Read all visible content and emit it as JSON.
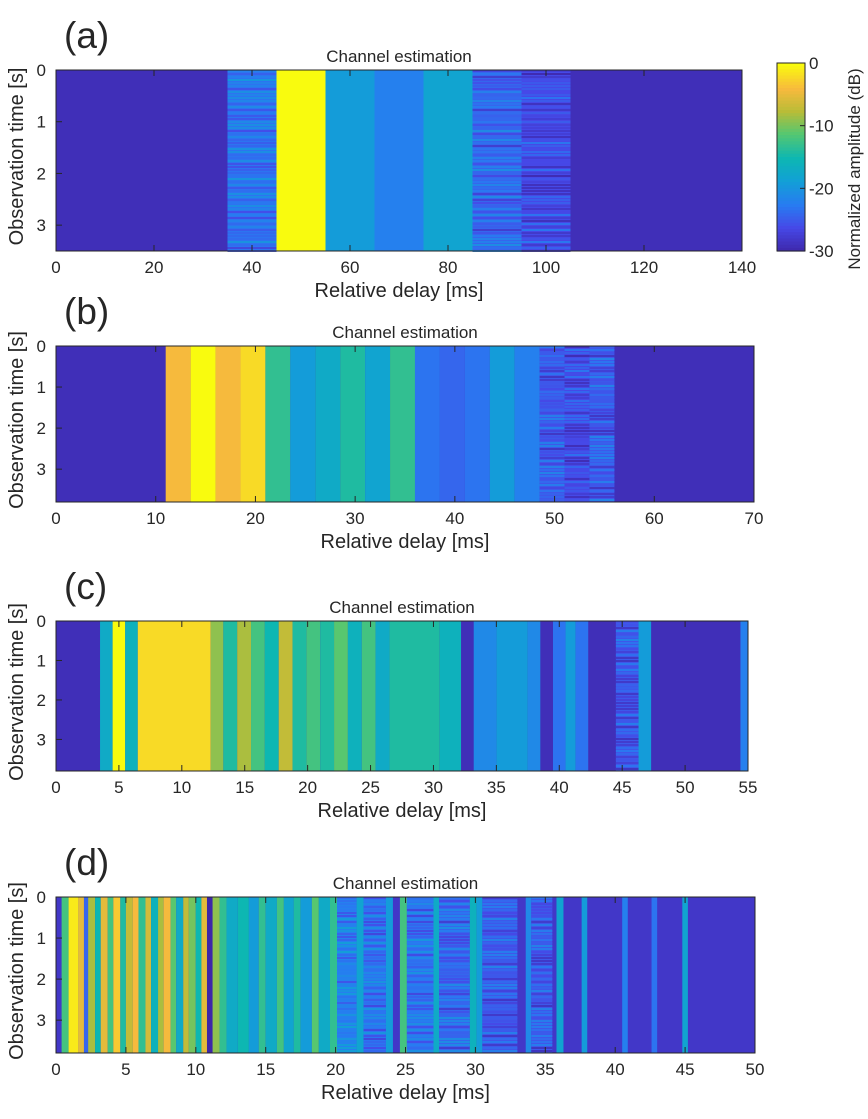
{
  "colorbar": {
    "label": "Normalized amplitude (dB)",
    "min": -30,
    "max": 0,
    "ticks": [
      0,
      -10,
      -20,
      -30
    ],
    "colormap": "parula"
  },
  "chart_data": [
    {
      "type": "heatmap",
      "panel_label": "(a)",
      "title": "Channel estimation",
      "xlabel": "Relative delay [ms]",
      "ylabel": "Observation time [s]",
      "xlim": [
        0,
        140
      ],
      "ylim": [
        0,
        3.5
      ],
      "xticks": [
        0,
        20,
        40,
        60,
        80,
        100,
        120,
        140
      ],
      "yticks": [
        0,
        1,
        2,
        3
      ],
      "background_db": -29,
      "segments": [
        {
          "x0": 35,
          "x1": 45,
          "db": -23,
          "streaky": true
        },
        {
          "x0": 45,
          "x1": 55,
          "db": 0
        },
        {
          "x0": 55,
          "x1": 65,
          "db": -19
        },
        {
          "x0": 65,
          "x1": 75,
          "db": -22
        },
        {
          "x0": 75,
          "x1": 85,
          "db": -18
        },
        {
          "x0": 85,
          "x1": 95,
          "db": -24,
          "streaky": true
        },
        {
          "x0": 95,
          "x1": 105,
          "db": -26,
          "streaky": true
        }
      ]
    },
    {
      "type": "heatmap",
      "panel_label": "(b)",
      "title": "Channel estimation",
      "xlabel": "Relative delay [ms]",
      "ylabel": "Observation time [s]",
      "xlim": [
        0,
        70
      ],
      "ylim": [
        0,
        3.8
      ],
      "xticks": [
        0,
        10,
        20,
        30,
        40,
        50,
        60,
        70
      ],
      "yticks": [
        0,
        1,
        2,
        3
      ],
      "background_db": -29,
      "segments": [
        {
          "x0": 11,
          "x1": 13.5,
          "db": -4
        },
        {
          "x0": 13.5,
          "x1": 16,
          "db": 0
        },
        {
          "x0": 16,
          "x1": 18.5,
          "db": -4
        },
        {
          "x0": 18.5,
          "x1": 21,
          "db": -2
        },
        {
          "x0": 21,
          "x1": 23.5,
          "db": -13
        },
        {
          "x0": 23.5,
          "x1": 26,
          "db": -19
        },
        {
          "x0": 26,
          "x1": 28.5,
          "db": -17
        },
        {
          "x0": 28.5,
          "x1": 31,
          "db": -14
        },
        {
          "x0": 31,
          "x1": 33.5,
          "db": -18
        },
        {
          "x0": 33.5,
          "x1": 36,
          "db": -13
        },
        {
          "x0": 36,
          "x1": 38.5,
          "db": -23
        },
        {
          "x0": 38.5,
          "x1": 41,
          "db": -24
        },
        {
          "x0": 41,
          "x1": 43.5,
          "db": -23
        },
        {
          "x0": 43.5,
          "x1": 46,
          "db": -19
        },
        {
          "x0": 46,
          "x1": 48.5,
          "db": -22
        },
        {
          "x0": 48.5,
          "x1": 51,
          "db": -25,
          "streaky": true
        },
        {
          "x0": 51,
          "x1": 53.5,
          "db": -26,
          "streaky": true
        },
        {
          "x0": 53.5,
          "x1": 56,
          "db": -25,
          "streaky": true
        }
      ]
    },
    {
      "type": "heatmap",
      "panel_label": "(c)",
      "title": "Channel estimation",
      "xlabel": "Relative delay [ms]",
      "ylabel": "Observation time [s]",
      "xlim": [
        0,
        55
      ],
      "ylim": [
        0,
        3.8
      ],
      "xticks": [
        0,
        5,
        10,
        15,
        20,
        25,
        30,
        35,
        40,
        45,
        50,
        55
      ],
      "yticks": [
        0,
        1,
        2,
        3
      ],
      "background_db": -29,
      "segments": [
        {
          "x0": 3.5,
          "x1": 4.5,
          "db": -17
        },
        {
          "x0": 4.5,
          "x1": 5.5,
          "db": 0
        },
        {
          "x0": 5.5,
          "x1": 6.5,
          "db": -16
        },
        {
          "x0": 6.5,
          "x1": 12.3,
          "db": -2
        },
        {
          "x0": 12.3,
          "x1": 13.3,
          "db": -9
        },
        {
          "x0": 13.3,
          "x1": 14.4,
          "db": -14
        },
        {
          "x0": 14.4,
          "x1": 15.5,
          "db": -8
        },
        {
          "x0": 15.5,
          "x1": 16.6,
          "db": -12
        },
        {
          "x0": 16.6,
          "x1": 17.7,
          "db": -15
        },
        {
          "x0": 17.7,
          "x1": 18.8,
          "db": -7
        },
        {
          "x0": 18.8,
          "x1": 19.9,
          "db": -14
        },
        {
          "x0": 19.9,
          "x1": 21,
          "db": -12
        },
        {
          "x0": 21,
          "x1": 22.1,
          "db": -14
        },
        {
          "x0": 22.1,
          "x1": 23.2,
          "db": -11
        },
        {
          "x0": 23.2,
          "x1": 24.3,
          "db": -16
        },
        {
          "x0": 24.3,
          "x1": 25.4,
          "db": -12
        },
        {
          "x0": 25.4,
          "x1": 26.5,
          "db": -17
        },
        {
          "x0": 26.5,
          "x1": 30.5,
          "db": -14
        },
        {
          "x0": 30.5,
          "x1": 32.2,
          "db": -16
        },
        {
          "x0": 32.2,
          "x1": 33.2,
          "db": -29
        },
        {
          "x0": 33.2,
          "x1": 35,
          "db": -21
        },
        {
          "x0": 35,
          "x1": 37.5,
          "db": -19
        },
        {
          "x0": 37.5,
          "x1": 38.5,
          "db": -21
        },
        {
          "x0": 38.5,
          "x1": 39.5,
          "db": -29
        },
        {
          "x0": 39.5,
          "x1": 40.5,
          "db": -23
        },
        {
          "x0": 40.5,
          "x1": 41.3,
          "db": -19
        },
        {
          "x0": 41.3,
          "x1": 42.3,
          "db": -23
        },
        {
          "x0": 44.5,
          "x1": 46.3,
          "db": -25,
          "streaky": true
        },
        {
          "x0": 46.3,
          "x1": 47.3,
          "db": -19
        },
        {
          "x0": 54.4,
          "x1": 55,
          "db": -22
        }
      ]
    },
    {
      "type": "heatmap",
      "panel_label": "(d)",
      "title": "Channel estimation",
      "xlabel": "Relative delay [ms]",
      "ylabel": "Observation time [s]",
      "xlim": [
        0,
        50
      ],
      "ylim": [
        0,
        3.8
      ],
      "xticks": [
        0,
        5,
        10,
        15,
        20,
        25,
        30,
        35,
        40,
        45,
        50
      ],
      "yticks": [
        0,
        1,
        2,
        3
      ],
      "background_db": -28,
      "segments": [
        {
          "x0": 0.4,
          "x1": 0.9,
          "db": -12
        },
        {
          "x0": 0.9,
          "x1": 1.6,
          "db": -1
        },
        {
          "x0": 1.6,
          "x1": 2.0,
          "db": -5
        },
        {
          "x0": 2.0,
          "x1": 2.3,
          "db": -24
        },
        {
          "x0": 2.3,
          "x1": 2.8,
          "db": -8
        },
        {
          "x0": 2.8,
          "x1": 3.2,
          "db": -15
        },
        {
          "x0": 3.2,
          "x1": 3.7,
          "db": -5
        },
        {
          "x0": 3.7,
          "x1": 4.1,
          "db": -12
        },
        {
          "x0": 4.1,
          "x1": 4.6,
          "db": -3
        },
        {
          "x0": 4.6,
          "x1": 5.0,
          "db": -14
        },
        {
          "x0": 5.0,
          "x1": 5.5,
          "db": -7
        },
        {
          "x0": 5.5,
          "x1": 5.9,
          "db": -4
        },
        {
          "x0": 5.9,
          "x1": 6.4,
          "db": -13
        },
        {
          "x0": 6.4,
          "x1": 6.8,
          "db": -6
        },
        {
          "x0": 6.8,
          "x1": 7.3,
          "db": -16
        },
        {
          "x0": 7.3,
          "x1": 7.7,
          "db": -8
        },
        {
          "x0": 7.7,
          "x1": 8.2,
          "db": -4
        },
        {
          "x0": 8.2,
          "x1": 8.6,
          "db": -11
        },
        {
          "x0": 8.6,
          "x1": 9.1,
          "db": -17
        },
        {
          "x0": 9.1,
          "x1": 9.5,
          "db": -7
        },
        {
          "x0": 9.5,
          "x1": 10.0,
          "db": -10
        },
        {
          "x0": 10.0,
          "x1": 10.4,
          "db": -15
        },
        {
          "x0": 10.4,
          "x1": 10.8,
          "db": -5
        },
        {
          "x0": 10.8,
          "x1": 11.2,
          "db": -32
        },
        {
          "x0": 11.2,
          "x1": 11.7,
          "db": -9
        },
        {
          "x0": 11.7,
          "x1": 12.2,
          "db": -13
        },
        {
          "x0": 12.2,
          "x1": 13.0,
          "db": -17
        },
        {
          "x0": 13.0,
          "x1": 13.8,
          "db": -15
        },
        {
          "x0": 13.8,
          "x1": 14.5,
          "db": -19
        },
        {
          "x0": 14.5,
          "x1": 15.0,
          "db": -13
        },
        {
          "x0": 15.0,
          "x1": 15.8,
          "db": -17
        },
        {
          "x0": 15.8,
          "x1": 16.3,
          "db": -12
        },
        {
          "x0": 16.3,
          "x1": 17.0,
          "db": -18
        },
        {
          "x0": 17.0,
          "x1": 17.5,
          "db": -14
        },
        {
          "x0": 17.5,
          "x1": 18.3,
          "db": -19
        },
        {
          "x0": 18.3,
          "x1": 18.8,
          "db": -11
        },
        {
          "x0": 18.8,
          "x1": 19.6,
          "db": -17
        },
        {
          "x0": 19.6,
          "x1": 20.1,
          "db": -13
        },
        {
          "x0": 20.1,
          "x1": 21.5,
          "db": -22,
          "streaky": true
        },
        {
          "x0": 21.5,
          "x1": 22.0,
          "db": -18
        },
        {
          "x0": 22.0,
          "x1": 23.6,
          "db": -23,
          "streaky": true
        },
        {
          "x0": 23.6,
          "x1": 24.1,
          "db": -19
        },
        {
          "x0": 24.6,
          "x1": 25.1,
          "db": -12
        },
        {
          "x0": 25.1,
          "x1": 27.0,
          "db": -23,
          "streaky": true
        },
        {
          "x0": 27.0,
          "x1": 27.4,
          "db": -17
        },
        {
          "x0": 27.4,
          "x1": 29.6,
          "db": -24,
          "streaky": true
        },
        {
          "x0": 29.6,
          "x1": 30.1,
          "db": -16
        },
        {
          "x0": 30.1,
          "x1": 30.5,
          "db": -19
        },
        {
          "x0": 30.5,
          "x1": 33.0,
          "db": -25,
          "streaky": true
        },
        {
          "x0": 33.6,
          "x1": 34.0,
          "db": -21
        },
        {
          "x0": 34.0,
          "x1": 35.5,
          "db": -25,
          "streaky": true
        },
        {
          "x0": 35.8,
          "x1": 36.3,
          "db": -18
        },
        {
          "x0": 37.6,
          "x1": 38.0,
          "db": -19
        },
        {
          "x0": 40.5,
          "x1": 40.9,
          "db": -22
        },
        {
          "x0": 42.6,
          "x1": 43.0,
          "db": -23
        },
        {
          "x0": 44.8,
          "x1": 45.2,
          "db": -18
        }
      ]
    }
  ]
}
